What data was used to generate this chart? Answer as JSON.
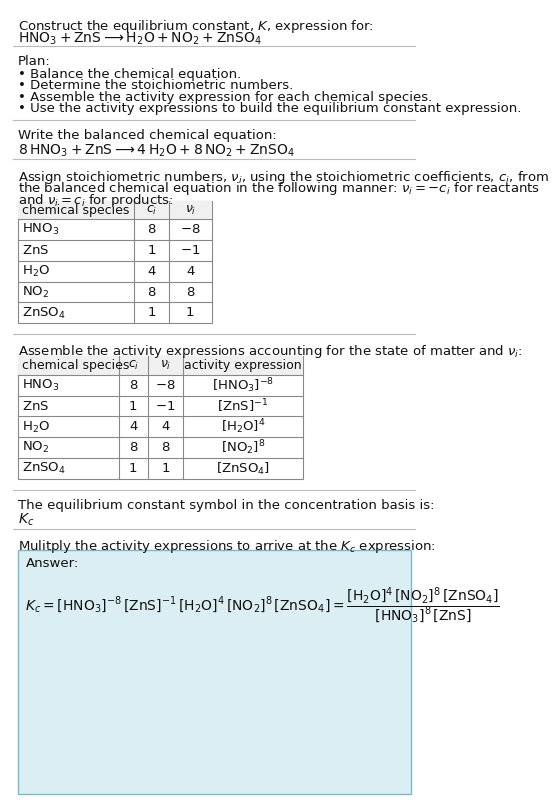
{
  "title_line1": "Construct the equilibrium constant, $K$, expression for:",
  "title_line2": "$\\mathrm{HNO_3 + ZnS \\longrightarrow H_2O + NO_2 + ZnSO_4}$",
  "plan_header": "Plan:",
  "plan_items": [
    "• Balance the chemical equation.",
    "• Determine the stoichiometric numbers.",
    "• Assemble the activity expression for each chemical species.",
    "• Use the activity expressions to build the equilibrium constant expression."
  ],
  "balanced_header": "Write the balanced chemical equation:",
  "balanced_eq": "$\\mathrm{8\\,HNO_3 + ZnS \\longrightarrow 4\\,H_2O + 8\\,NO_2 + ZnSO_4}$",
  "stoich_header_1": "Assign stoichiometric numbers, $\\nu_i$, using the stoichiometric coefficients, $c_i$, from",
  "stoich_header_2": "the balanced chemical equation in the following manner: $\\nu_i = -c_i$ for reactants",
  "stoich_header_3": "and $\\nu_i = c_i$ for products:",
  "table1_cols": [
    "chemical species",
    "$c_i$",
    "$\\nu_i$"
  ],
  "table1_rows": [
    [
      "$\\mathrm{HNO_3}$",
      "8",
      "$-8$"
    ],
    [
      "$\\mathrm{ZnS}$",
      "1",
      "$-1$"
    ],
    [
      "$\\mathrm{H_2O}$",
      "4",
      "4"
    ],
    [
      "$\\mathrm{NO_2}$",
      "8",
      "8"
    ],
    [
      "$\\mathrm{ZnSO_4}$",
      "1",
      "1"
    ]
  ],
  "activity_header": "Assemble the activity expressions accounting for the state of matter and $\\nu_i$:",
  "table2_cols": [
    "chemical species",
    "$c_i$",
    "$\\nu_i$",
    "activity expression"
  ],
  "table2_rows": [
    [
      "$\\mathrm{HNO_3}$",
      "8",
      "$-8$",
      "$[\\mathrm{HNO_3}]^{-8}$"
    ],
    [
      "$\\mathrm{ZnS}$",
      "1",
      "$-1$",
      "$[\\mathrm{ZnS}]^{-1}$"
    ],
    [
      "$\\mathrm{H_2O}$",
      "4",
      "4",
      "$[\\mathrm{H_2O}]^{4}$"
    ],
    [
      "$\\mathrm{NO_2}$",
      "8",
      "8",
      "$[\\mathrm{NO_2}]^{8}$"
    ],
    [
      "$\\mathrm{ZnSO_4}$",
      "1",
      "1",
      "$[\\mathrm{ZnSO_4}]$"
    ]
  ],
  "kc_symbol_header": "The equilibrium constant symbol in the concentration basis is:",
  "kc_symbol": "$K_c$",
  "multiply_header": "Mulitply the activity expressions to arrive at the $K_c$ expression:",
  "answer_label": "Answer:",
  "kc_expr": "$K_c = [\\mathrm{HNO_3}]^{-8}\\,[\\mathrm{ZnS}]^{-1}\\,[\\mathrm{H_2O}]^{4}\\,[\\mathrm{NO_2}]^{8}\\,[\\mathrm{ZnSO_4}] = \\dfrac{[\\mathrm{H_2O}]^{4}\\,[\\mathrm{NO_2}]^{8}\\,[\\mathrm{ZnSO_4}]}{[\\mathrm{HNO_3}]^{8}\\,[\\mathrm{ZnS}]}$",
  "bg_color": "#ffffff",
  "answer_bg": "#daeef3",
  "font_size": 9.5
}
